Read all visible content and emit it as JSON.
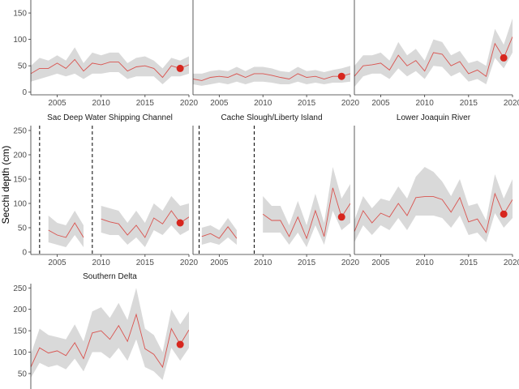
{
  "figure": {
    "ylabel": "Secchi depth (cm)",
    "colors": {
      "line": "#d9534f",
      "point": "#d7261e",
      "ribbon": "#d9d9d9",
      "axis": "#333333",
      "vline": "#000000"
    }
  },
  "chart_data": [
    {
      "type": "line",
      "panel": "Top Left",
      "title": "",
      "xlim": [
        2002,
        2020
      ],
      "ylim": [
        -5,
        190
      ],
      "xticks": [
        2005,
        2010,
        2015,
        2020
      ],
      "yticks": [
        0,
        50,
        100,
        150
      ],
      "series": [
        {
          "x": [
            2002,
            2003,
            2004,
            2005,
            2006,
            2007,
            2008,
            2009,
            2010,
            2011,
            2012,
            2013,
            2014,
            2015,
            2016,
            2017,
            2018,
            2019,
            2020
          ],
          "y": [
            35,
            45,
            45,
            55,
            45,
            62,
            40,
            55,
            52,
            57,
            57,
            40,
            48,
            50,
            45,
            28,
            50,
            45,
            52
          ],
          "lower": [
            20,
            25,
            30,
            35,
            30,
            35,
            25,
            35,
            35,
            38,
            38,
            25,
            30,
            30,
            30,
            15,
            30,
            30,
            35
          ],
          "upper": [
            50,
            65,
            60,
            70,
            60,
            85,
            55,
            75,
            70,
            75,
            75,
            55,
            65,
            68,
            60,
            45,
            65,
            60,
            68
          ]
        }
      ],
      "vlines": [],
      "highlight": {
        "x": 2019,
        "y": 45
      }
    },
    {
      "type": "line",
      "panel": "Top Middle",
      "title": "",
      "xlim": [
        2002,
        2020
      ],
      "ylim": [
        -5,
        190
      ],
      "xticks": [
        2005,
        2010,
        2015,
        2020
      ],
      "yticks": [],
      "series": [
        {
          "x": [
            2002,
            2003,
            2004,
            2005,
            2006,
            2007,
            2008,
            2009,
            2010,
            2011,
            2012,
            2013,
            2014,
            2015,
            2016,
            2017,
            2018,
            2019,
            2020
          ],
          "y": [
            25,
            22,
            28,
            30,
            28,
            35,
            28,
            35,
            35,
            32,
            28,
            25,
            35,
            28,
            30,
            25,
            30,
            30,
            35
          ],
          "lower": [
            15,
            12,
            15,
            18,
            15,
            20,
            15,
            20,
            20,
            18,
            15,
            15,
            20,
            15,
            18,
            15,
            18,
            18,
            20
          ],
          "upper": [
            35,
            35,
            40,
            42,
            40,
            48,
            40,
            48,
            48,
            45,
            40,
            38,
            48,
            40,
            42,
            38,
            42,
            45,
            50
          ]
        }
      ],
      "vlines": [],
      "highlight": {
        "x": 2019,
        "y": 30
      }
    },
    {
      "type": "line",
      "panel": "Top Right",
      "title": "",
      "xlim": [
        2002,
        2020
      ],
      "ylim": [
        -5,
        190
      ],
      "xticks": [
        2005,
        2010,
        2015,
        2020
      ],
      "yticks": [],
      "series": [
        {
          "x": [
            2002,
            2003,
            2004,
            2005,
            2006,
            2007,
            2008,
            2009,
            2010,
            2011,
            2012,
            2013,
            2014,
            2015,
            2016,
            2017,
            2018,
            2019,
            2020
          ],
          "y": [
            30,
            50,
            52,
            55,
            42,
            70,
            50,
            60,
            40,
            75,
            72,
            50,
            58,
            35,
            42,
            30,
            92,
            65,
            105
          ],
          "lower": [
            10,
            30,
            35,
            35,
            25,
            45,
            30,
            40,
            25,
            50,
            48,
            30,
            38,
            20,
            25,
            15,
            65,
            45,
            75
          ],
          "upper": [
            50,
            70,
            70,
            75,
            60,
            95,
            70,
            82,
            60,
            100,
            95,
            70,
            78,
            55,
            60,
            50,
            120,
            90,
            140
          ]
        }
      ],
      "vlines": [],
      "highlight": {
        "x": 2019,
        "y": 65
      }
    },
    {
      "type": "line",
      "panel": "Sac Deep Water Shipping Channel",
      "title": "Sac Deep Water Shipping Channel",
      "xlim": [
        2002,
        2020
      ],
      "ylim": [
        -5,
        260
      ],
      "xticks": [
        2005,
        2010,
        2015,
        2020
      ],
      "yticks": [
        0,
        50,
        100,
        150,
        200,
        250
      ],
      "segments": [
        {
          "x": [
            2004,
            2005,
            2006,
            2007,
            2008
          ],
          "y": [
            45,
            35,
            30,
            60,
            30
          ],
          "lower": [
            20,
            15,
            10,
            35,
            10
          ],
          "upper": [
            75,
            60,
            55,
            85,
            55
          ]
        },
        {
          "x": [
            2010,
            2011,
            2012,
            2013,
            2014,
            2015,
            2016,
            2017,
            2018,
            2019,
            2020
          ],
          "y": [
            68,
            62,
            58,
            35,
            55,
            30,
            70,
            58,
            85,
            60,
            72
          ],
          "lower": [
            40,
            35,
            35,
            15,
            30,
            10,
            45,
            35,
            55,
            35,
            45
          ],
          "upper": [
            95,
            90,
            85,
            60,
            85,
            60,
            100,
            85,
            115,
            95,
            100
          ]
        }
      ],
      "vlines": [
        2003,
        2009
      ],
      "highlight": {
        "x": 2019,
        "y": 60
      }
    },
    {
      "type": "line",
      "panel": "Cache Slough/Liberty Island",
      "title": "Cache Slough/Liberty Island",
      "xlim": [
        2002,
        2020
      ],
      "ylim": [
        -5,
        260
      ],
      "xticks": [
        2005,
        2010,
        2015,
        2020
      ],
      "yticks": [],
      "segments": [
        {
          "x": [
            2003,
            2004,
            2005,
            2006,
            2007,
            2008
          ],
          "y": [
            32,
            38,
            28,
            52,
            28,
            null
          ],
          "lower": [
            15,
            20,
            15,
            30,
            15,
            null
          ],
          "upper": [
            50,
            55,
            45,
            70,
            45,
            null
          ]
        },
        {
          "x": [
            2010,
            2011,
            2012,
            2013,
            2014,
            2015,
            2016,
            2017,
            2018,
            2019,
            2020
          ],
          "y": [
            78,
            65,
            65,
            32,
            72,
            28,
            85,
            32,
            132,
            72,
            100
          ],
          "lower": [
            40,
            40,
            40,
            15,
            40,
            10,
            55,
            15,
            85,
            45,
            60
          ],
          "upper": [
            115,
            95,
            95,
            55,
            105,
            55,
            120,
            60,
            175,
            110,
            140
          ]
        }
      ],
      "vlines": [
        2002.7,
        2009
      ],
      "highlight": {
        "x": 2019,
        "y": 72
      }
    },
    {
      "type": "line",
      "panel": "Lower Joaquin River",
      "title": "Lower Joaquin River",
      "xlim": [
        2002,
        2020
      ],
      "ylim": [
        -5,
        260
      ],
      "xticks": [
        2005,
        2010,
        2015,
        2020
      ],
      "yticks": [],
      "series": [
        {
          "x": [
            2002,
            2003,
            2004,
            2005,
            2006,
            2007,
            2008,
            2009,
            2010,
            2011,
            2012,
            2013,
            2014,
            2015,
            2016,
            2017,
            2018,
            2019,
            2020
          ],
          "y": [
            42,
            85,
            60,
            80,
            72,
            100,
            75,
            112,
            114,
            114,
            108,
            82,
            112,
            62,
            68,
            40,
            120,
            78,
            108
          ],
          "lower": [
            20,
            55,
            35,
            55,
            45,
            70,
            45,
            75,
            75,
            75,
            70,
            50,
            75,
            35,
            40,
            20,
            80,
            50,
            70
          ],
          "upper": [
            65,
            115,
            90,
            110,
            105,
            135,
            110,
            155,
            175,
            165,
            145,
            115,
            150,
            95,
            100,
            65,
            160,
            110,
            150
          ]
        }
      ],
      "vlines": [],
      "highlight": {
        "x": 2019,
        "y": 78
      }
    },
    {
      "type": "line",
      "panel": "Southern Delta",
      "title": "Southern Delta",
      "xlim": [
        2002,
        2020
      ],
      "ylim": [
        -5,
        260
      ],
      "xticks": [],
      "yticks": [
        50,
        100,
        150,
        200,
        250
      ],
      "series": [
        {
          "x": [
            2002,
            2003,
            2004,
            2005,
            2006,
            2007,
            2008,
            2009,
            2010,
            2011,
            2012,
            2013,
            2014,
            2015,
            2016,
            2017,
            2018,
            2019,
            2020
          ],
          "y": [
            65,
            110,
            98,
            103,
            92,
            122,
            85,
            145,
            150,
            130,
            162,
            125,
            188,
            108,
            95,
            65,
            155,
            118,
            152
          ],
          "lower": [
            40,
            75,
            65,
            70,
            60,
            85,
            55,
            100,
            100,
            85,
            110,
            80,
            130,
            65,
            55,
            35,
            110,
            80,
            110
          ],
          "upper": [
            95,
            155,
            140,
            135,
            130,
            165,
            125,
            195,
            205,
            180,
            215,
            175,
            250,
            155,
            140,
            100,
            200,
            165,
            195
          ]
        }
      ],
      "vlines": [],
      "highlight": {
        "x": 2019,
        "y": 118
      }
    }
  ]
}
